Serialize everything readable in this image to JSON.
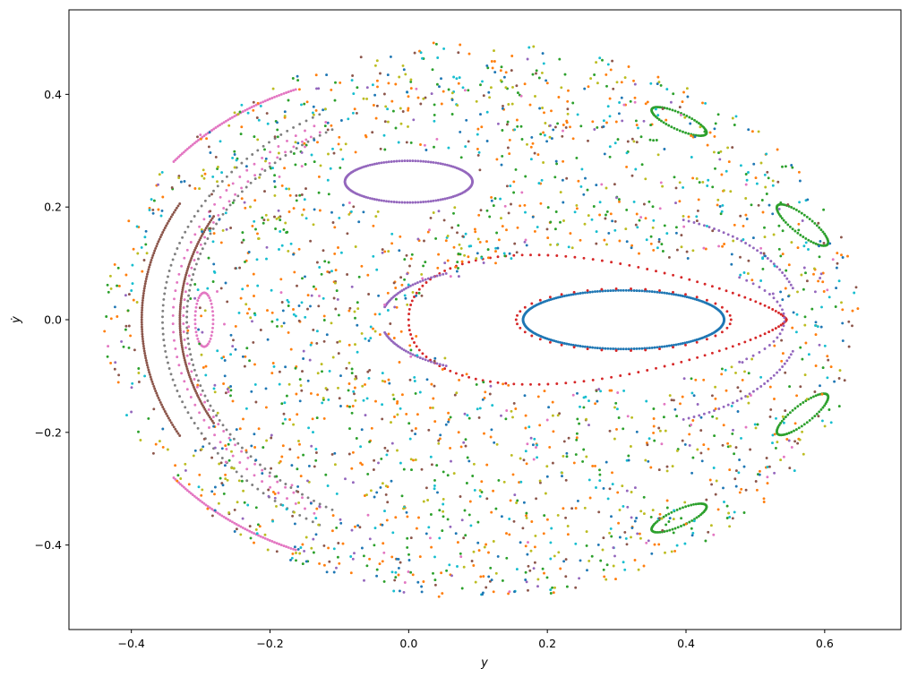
{
  "chart_data": {
    "type": "scatter",
    "title": "",
    "xlabel": "y",
    "ylabel": "ẏ",
    "xlim": [
      -0.49,
      0.71
    ],
    "ylim": [
      -0.55,
      0.55
    ],
    "xticks": [
      -0.4,
      -0.2,
      0.0,
      0.2,
      0.4,
      0.6
    ],
    "yticks": [
      -0.4,
      -0.2,
      0.0,
      0.2,
      0.4
    ],
    "xtick_labels": [
      "−0.4",
      "−0.2",
      "0.0",
      "0.2",
      "0.4",
      "0.6"
    ],
    "ytick_labels": [
      "−0.4",
      "−0.2",
      "0.0",
      "0.2",
      "0.4"
    ],
    "grid": false,
    "legend": "none",
    "series": [
      {
        "color": "#1f77b4",
        "kind": "loop",
        "cx": 0.31,
        "cy": 0.0,
        "rx": 0.145,
        "ry": 0.052,
        "n": 240
      },
      {
        "color": "#d62728",
        "kind": "loop-dashed",
        "cx": 0.31,
        "cy": 0.0,
        "rx": 0.155,
        "ry": 0.055,
        "n": 46
      },
      {
        "color": "#d62728",
        "kind": "egg",
        "x0": 0.0,
        "x1": 0.545,
        "cx": 0.32,
        "ry": 0.115,
        "n": 130
      },
      {
        "color": "#9467bd",
        "kind": "loop",
        "cx": 0.0,
        "cy": 0.245,
        "rx": 0.092,
        "ry": 0.037,
        "n": 150
      },
      {
        "color": "#8c564b",
        "kind": "crescent",
        "cx": 0.12,
        "cy": 0.0,
        "r_out": 0.505,
        "r_in": 0.45,
        "theta": 0.47,
        "n": 200
      },
      {
        "color": "#e377c2",
        "kind": "crescent",
        "cx": 0.12,
        "cy": 0.0,
        "r_out": 0.46,
        "r_in": 0.445,
        "theta": 0.98,
        "n": 110
      },
      {
        "color": "#7f7f7f",
        "kind": "crescent",
        "cx": 0.12,
        "cy": 0.0,
        "r_out": 0.475,
        "r_in": 0.44,
        "theta": 1.02,
        "n": 170
      },
      {
        "color": "#e377c2",
        "kind": "loop",
        "cx": -0.295,
        "cy": 0.0,
        "rx": 0.013,
        "ry": 0.048,
        "n": 40
      },
      {
        "color": "#e377c2",
        "kind": "arc",
        "cx": 0.0,
        "cy": 0.0,
        "r": 0.44,
        "a0": 1.95,
        "a1": 2.45,
        "scaleX": 1.0,
        "n": 60
      },
      {
        "color": "#e377c2",
        "kind": "arc",
        "cx": 0.0,
        "cy": 0.0,
        "r": 0.44,
        "a0": -2.45,
        "a1": -1.95,
        "scaleX": 1.0,
        "n": 60
      },
      {
        "color": "#2ca02c",
        "kind": "island",
        "cx": 0.39,
        "cy": 0.352,
        "len": 0.09,
        "w": 0.014,
        "ang": -0.52,
        "n": 60
      },
      {
        "color": "#2ca02c",
        "kind": "island",
        "cx": 0.39,
        "cy": -0.352,
        "len": 0.09,
        "w": 0.014,
        "ang": 0.52,
        "n": 60
      },
      {
        "color": "#2ca02c",
        "kind": "island",
        "cx": 0.568,
        "cy": 0.168,
        "len": 0.1,
        "w": 0.015,
        "ang": -0.78,
        "n": 60
      },
      {
        "color": "#2ca02c",
        "kind": "island",
        "cx": 0.568,
        "cy": -0.168,
        "len": 0.1,
        "w": 0.015,
        "ang": 0.78,
        "n": 60
      },
      {
        "color": "#9467bd",
        "kind": "arc",
        "cx": 0.3,
        "cy": 0.0,
        "r": 0.19,
        "a0": 0.3,
        "a1": 1.2,
        "scaleX": 1.4,
        "n": 30
      },
      {
        "color": "#9467bd",
        "kind": "arc",
        "cx": 0.3,
        "cy": 0.0,
        "r": 0.19,
        "a0": -1.2,
        "a1": -0.3,
        "scaleX": 1.4,
        "n": 30
      },
      {
        "color": "#9467bd",
        "kind": "arc",
        "cx": 0.15,
        "cy": 0.0,
        "r": 0.095,
        "a0": 2.1,
        "a1": 2.9,
        "scaleX": 2.0,
        "n": 30
      },
      {
        "color": "#9467bd",
        "kind": "arc",
        "cx": 0.15,
        "cy": 0.0,
        "r": 0.095,
        "a0": -2.9,
        "a1": -2.1,
        "scaleX": 2.0,
        "n": 30
      },
      {
        "color": "#9467bd",
        "kind": "arc",
        "cx": 0.3,
        "cy": 0.0,
        "r": 0.11,
        "a0": -0.75,
        "a1": 0.75,
        "scaleX": 2.2,
        "n": 24
      },
      {
        "color": "#ff7f0e",
        "kind": "cloud",
        "n": 520,
        "seed": 11
      },
      {
        "color": "#2ca02c",
        "kind": "cloud",
        "n": 380,
        "seed": 23
      },
      {
        "color": "#17becf",
        "kind": "cloud",
        "n": 330,
        "seed": 37
      },
      {
        "color": "#8c564b",
        "kind": "cloud",
        "n": 300,
        "seed": 41
      },
      {
        "color": "#bcbd22",
        "kind": "cloud",
        "n": 330,
        "seed": 53
      },
      {
        "color": "#1f77b4",
        "kind": "cloud",
        "n": 260,
        "seed": 67
      },
      {
        "color": "#9467bd",
        "kind": "cloud",
        "n": 110,
        "seed": 79
      },
      {
        "color": "#e377c2",
        "kind": "cloud",
        "n": 70,
        "seed": 83
      }
    ]
  }
}
